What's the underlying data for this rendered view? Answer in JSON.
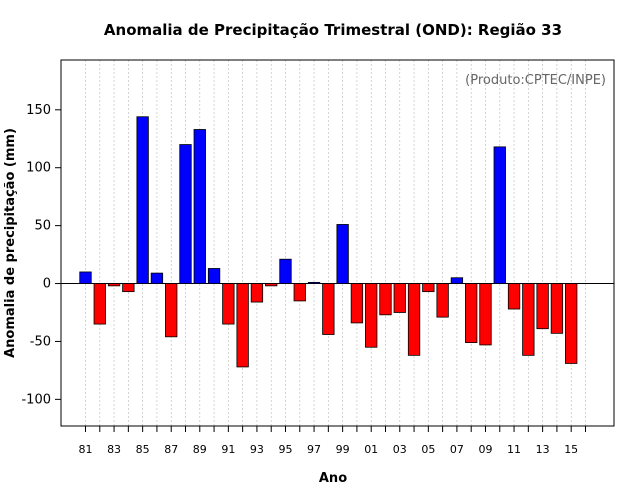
{
  "chart_data": {
    "type": "bar",
    "title": "Anomalia de Precipitação Trimestral (OND): Região 33",
    "credit": "(Produto:CPTEC/INPE)",
    "xlabel": "Ano",
    "ylabel": "Anomalia de precipitação (mm)",
    "ylim": [
      -123,
      193
    ],
    "yticks": [
      -100,
      -50,
      0,
      50,
      100,
      150
    ],
    "xtick_labels": [
      "81",
      "83",
      "85",
      "87",
      "89",
      "91",
      "93",
      "95",
      "97",
      "99",
      "01",
      "03",
      "05",
      "07",
      "09",
      "11",
      "13",
      "15"
    ],
    "categories": [
      "1981",
      "1982",
      "1983",
      "1984",
      "1985",
      "1986",
      "1987",
      "1988",
      "1989",
      "1990",
      "1991",
      "1992",
      "1993",
      "1994",
      "1995",
      "1996",
      "1997",
      "1998",
      "1999",
      "2000",
      "2001",
      "2002",
      "2003",
      "2004",
      "2005",
      "2006",
      "2007",
      "2008",
      "2009",
      "2010",
      "2011",
      "2012",
      "2013",
      "2014",
      "2015"
    ],
    "values": [
      10,
      -35,
      -2,
      -7,
      144,
      9,
      -46,
      120,
      133,
      13,
      -35,
      -72,
      -16,
      -2,
      21,
      -15,
      1,
      -44,
      51,
      -34,
      -55,
      -27,
      -25,
      -62,
      -7,
      -29,
      5,
      -51,
      -53,
      118,
      -22,
      -62,
      -39,
      -43,
      -69
    ],
    "colors": {
      "positive": "#0000ff",
      "negative": "#ff0000",
      "grid": "#c0c0c0",
      "axis": "#000000"
    }
  }
}
